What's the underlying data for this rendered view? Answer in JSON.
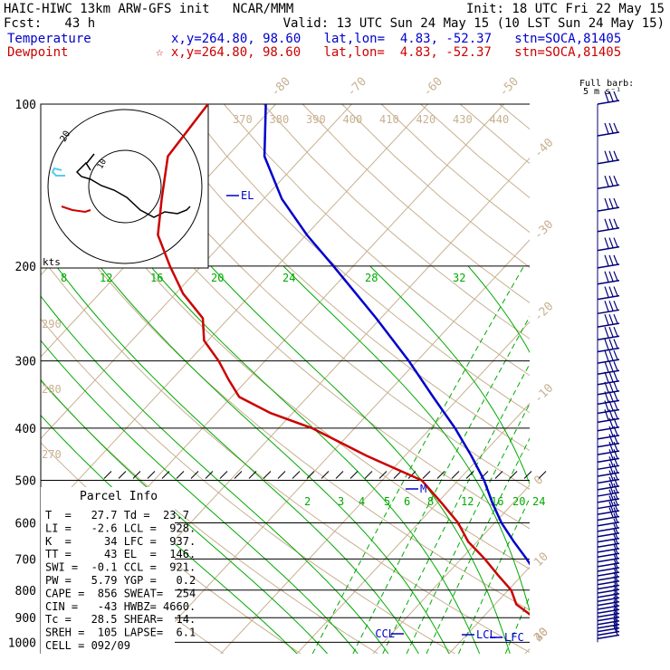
{
  "header": {
    "left1": "HAIC-HIWC 13km ARW-GFS init   NCAR/MMM",
    "left2": "Fcst:   43 h",
    "right1": "Init: 18 UTC Fri 22 May 15",
    "right2": "Valid: 13 UTC Sun 24 May 15 (10 LST Sun 24 May 15)",
    "temp_label": "Temperature",
    "dew_label": "Dewpoint",
    "temp_loc": "x,y=264.80, 98.60   lat,lon=  4.83, -52.37   stn=SOCA,81405",
    "dew_loc": "☆ x,y=264.80, 98.60   lat,lon=  4.83, -52.37   stn=SOCA,81405",
    "barb_label_1": "Full barb:",
    "barb_label_2": "5 m s⁻¹"
  },
  "colors": {
    "temperature": "#0000cc",
    "dewpoint": "#cc0000",
    "isotherm": "#c8b090",
    "mixing_ratio": "#00aa00",
    "hodo_low": "#55ccee",
    "hodo_high": "#cc0000"
  },
  "params": {
    "title": "Parcel Info",
    "rows": [
      "T  =   27.7 Td =  23.7",
      "LI =   -2.6 LCL =  928.",
      "K  =     34 LFC =  937.",
      "TT =     43 EL  =  146.",
      "SWI =  -0.1 CCL =  921.",
      "PW =   5.79 YGP =   0.2",
      "CAPE =  856 SWEAT=  254",
      "CIN =   -43 HWBZ= 4660.",
      "Tc =   28.5 SHEAR=  14.",
      "SREH =  105 LAPSE=  6.1",
      "CELL = 092/09"
    ]
  },
  "level_labels": [
    "EL",
    "CCL",
    "LCL",
    "LFC",
    "M"
  ],
  "hodo": {
    "kts_label": "kts",
    "ring_label": "20",
    "ring_label2": "10"
  },
  "chart_data": {
    "type": "line",
    "kind": "skew-T log-p diagram",
    "y_axis": {
      "scale": "log",
      "ticks": [
        100,
        200,
        300,
        400,
        500,
        600,
        700,
        800,
        900,
        1000
      ]
    },
    "isotherm_labels": [
      "-80",
      "-70",
      "-60",
      "-50",
      "-40",
      "-30",
      "-20",
      "-10",
      "0",
      "10",
      "20",
      "30",
      "40"
    ],
    "isotherm_values": [
      -80,
      -70,
      -60,
      -50,
      -40,
      -30,
      -20,
      -10,
      0,
      10,
      20,
      30,
      40
    ],
    "theta_labels": [
      "370",
      "380",
      "390",
      "400",
      "410",
      "420",
      "430",
      "440"
    ],
    "theta_values": [
      370,
      380,
      390,
      400,
      410,
      420,
      430,
      440
    ],
    "theta_left_labels": [
      "290",
      "280",
      "270"
    ],
    "mixing_ratio_upper": [
      "8",
      "12",
      "16",
      "20",
      "24",
      "28",
      "32"
    ],
    "mixing_ratio_lower": [
      "2",
      "3",
      "4",
      "5",
      "6",
      "8",
      "12",
      "16",
      "20",
      "24"
    ],
    "series": [
      {
        "name": "Temperature",
        "points": [
          [
            1000,
            27.7
          ],
          [
            975,
            24.4
          ],
          [
            950,
            22.4
          ],
          [
            925,
            21.1
          ],
          [
            900,
            20.2
          ],
          [
            850,
            18.9
          ],
          [
            800,
            15.4
          ],
          [
            750,
            12.0
          ],
          [
            700,
            8.6
          ],
          [
            650,
            4.8
          ],
          [
            600,
            0.9
          ],
          [
            550,
            -2.8
          ],
          [
            500,
            -6.6
          ],
          [
            450,
            -11.3
          ],
          [
            400,
            -16.8
          ],
          [
            350,
            -23.5
          ],
          [
            300,
            -31.1
          ],
          [
            250,
            -40.6
          ],
          [
            200,
            -52.6
          ],
          [
            175,
            -59.9
          ],
          [
            150,
            -67.6
          ],
          [
            125,
            -75.1
          ],
          [
            100,
            -81.3
          ]
        ]
      },
      {
        "name": "Dewpoint",
        "points": [
          [
            1000,
            23.7
          ],
          [
            975,
            23.0
          ],
          [
            950,
            21.3
          ],
          [
            925,
            19.4
          ],
          [
            900,
            16.8
          ],
          [
            850,
            12.8
          ],
          [
            800,
            10.4
          ],
          [
            750,
            6.8
          ],
          [
            700,
            3.1
          ],
          [
            650,
            -1.2
          ],
          [
            600,
            -4.8
          ],
          [
            550,
            -9.5
          ],
          [
            500,
            -14.8
          ],
          [
            450,
            -25.1
          ],
          [
            400,
            -35.6
          ],
          [
            375,
            -42.9
          ],
          [
            350,
            -49.0
          ],
          [
            325,
            -52.5
          ],
          [
            300,
            -56.1
          ],
          [
            275,
            -60.5
          ],
          [
            250,
            -63.4
          ],
          [
            225,
            -69.0
          ],
          [
            200,
            -74.1
          ],
          [
            175,
            -79.5
          ],
          [
            150,
            -83.4
          ],
          [
            125,
            -87.8
          ],
          [
            100,
            -88.9
          ]
        ]
      }
    ]
  }
}
